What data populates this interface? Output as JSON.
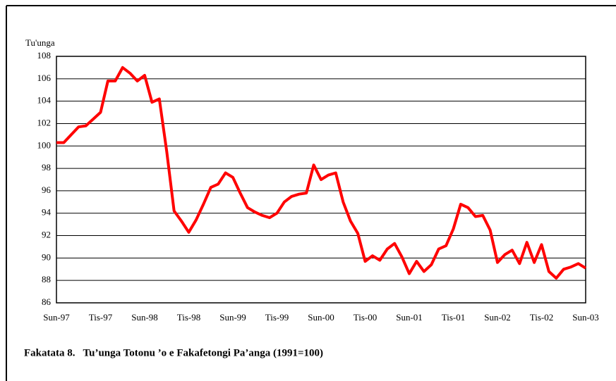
{
  "chart_data": {
    "type": "line",
    "title": "Fakatata 8.   Tu’unga Totonu ’o e Fakafetongi Pa’anga (1991=100)",
    "y_label": "Tu'unga",
    "categories": [
      "Sun-97",
      null,
      null,
      null,
      null,
      null,
      "Tis-97",
      null,
      null,
      null,
      null,
      null,
      "Sun-98",
      null,
      null,
      null,
      null,
      null,
      "Tis-98",
      null,
      null,
      null,
      null,
      null,
      "Sun-99",
      null,
      null,
      null,
      null,
      null,
      "Tis-99",
      null,
      null,
      null,
      null,
      null,
      "Sun-00",
      null,
      null,
      null,
      null,
      null,
      "Tis-00",
      null,
      null,
      null,
      null,
      null,
      "Sun-01",
      null,
      null,
      null,
      null,
      null,
      "Tis-01",
      null,
      null,
      null,
      null,
      null,
      "Sun-02",
      null,
      null,
      null,
      null,
      null,
      "Tis-02",
      null,
      null,
      null,
      null,
      null,
      "Sun-03"
    ],
    "values": [
      100.3,
      100.3,
      101.0,
      101.7,
      101.8,
      102.4,
      103.0,
      105.8,
      105.8,
      107.0,
      106.5,
      105.8,
      106.3,
      103.9,
      104.2,
      99.5,
      94.2,
      93.3,
      92.3,
      93.4,
      94.8,
      96.3,
      96.6,
      97.6,
      97.2,
      95.8,
      94.5,
      94.1,
      93.8,
      93.6,
      94.0,
      95.0,
      95.5,
      95.7,
      95.8,
      98.3,
      97.0,
      97.4,
      97.6,
      95.0,
      93.3,
      92.2,
      89.7,
      90.2,
      89.8,
      90.8,
      91.3,
      90.1,
      88.6,
      89.7,
      88.8,
      89.4,
      90.8,
      91.1,
      92.6,
      94.8,
      94.5,
      93.7,
      93.8,
      92.5,
      89.6,
      90.3,
      90.7,
      89.5,
      91.4,
      89.6,
      91.2,
      88.8,
      88.2,
      89.0,
      89.2,
      89.5,
      89.1
    ],
    "color": "#ff0000",
    "ylim": [
      86,
      108
    ],
    "yticks": [
      86,
      88,
      90,
      92,
      94,
      96,
      98,
      100,
      102,
      104,
      106,
      108
    ],
    "grid": true
  }
}
